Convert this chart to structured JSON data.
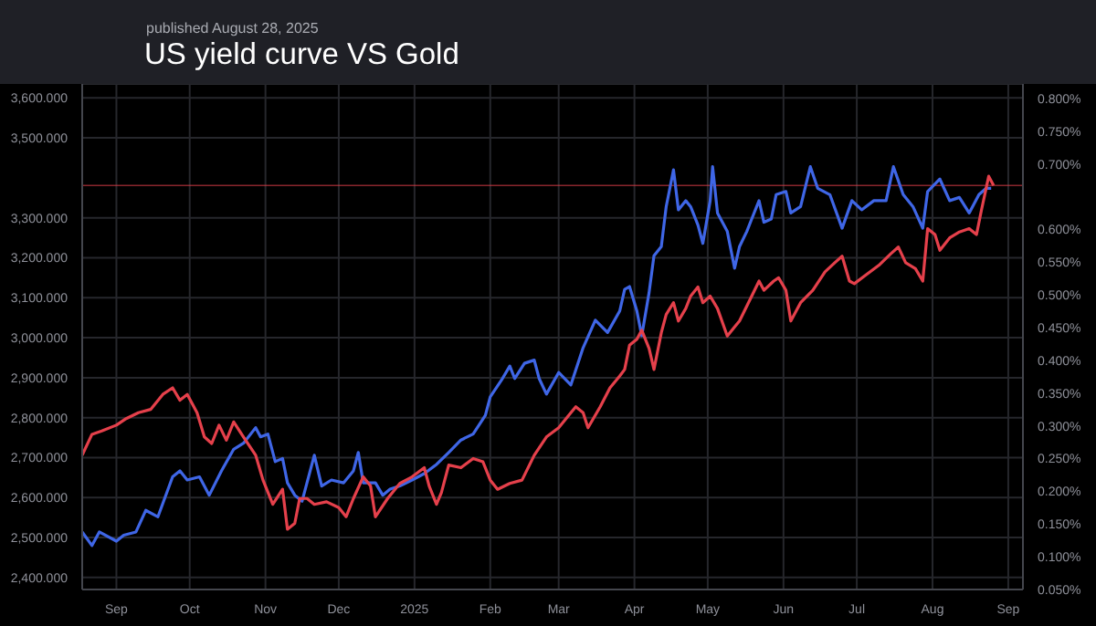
{
  "chart_data": {
    "type": "line",
    "title": "US yield curve VS Gold",
    "subtitle": "published August 28, 2025",
    "xlim": [
      "2024-08-18",
      "2025-09-07"
    ],
    "xticks": [
      {
        "value": "2024-09-01",
        "label": "Sep"
      },
      {
        "value": "2024-10-01",
        "label": "Oct"
      },
      {
        "value": "2024-11-01",
        "label": "Nov"
      },
      {
        "value": "2024-12-01",
        "label": "Dec"
      },
      {
        "value": "2025-01-01",
        "label": "2025"
      },
      {
        "value": "2025-02-01",
        "label": "Feb"
      },
      {
        "value": "2025-03-01",
        "label": "Mar"
      },
      {
        "value": "2025-04-01",
        "label": "Apr"
      },
      {
        "value": "2025-05-01",
        "label": "May"
      },
      {
        "value": "2025-06-01",
        "label": "Jun"
      },
      {
        "value": "2025-07-01",
        "label": "Jul"
      },
      {
        "value": "2025-08-01",
        "label": "Aug"
      },
      {
        "value": "2025-09-01",
        "label": "Sep"
      }
    ],
    "ylim": [
      2370,
      3635
    ],
    "yticks": [
      {
        "value": 2400,
        "label": "2,400.000"
      },
      {
        "value": 2500,
        "label": "2,500.000"
      },
      {
        "value": 2600,
        "label": "2,600.000"
      },
      {
        "value": 2700,
        "label": "2,700.000"
      },
      {
        "value": 2800,
        "label": "2,800.000"
      },
      {
        "value": 2900,
        "label": "2,900.000"
      },
      {
        "value": 3000,
        "label": "3,000.000"
      },
      {
        "value": 3100,
        "label": "3,100.000"
      },
      {
        "value": 3200,
        "label": "3,200.000"
      },
      {
        "value": 3300,
        "label": "3,300.000"
      },
      {
        "value": 3500,
        "label": "3,500.000"
      },
      {
        "value": 3600,
        "label": "3,600.000"
      }
    ],
    "y2lim": [
      0.05,
      0.822
    ],
    "y2ticks": [
      {
        "value": 0.05,
        "label": "0.050%"
      },
      {
        "value": 0.1,
        "label": "0.100%"
      },
      {
        "value": 0.15,
        "label": "0.150%"
      },
      {
        "value": 0.2,
        "label": "0.200%"
      },
      {
        "value": 0.25,
        "label": "0.250%"
      },
      {
        "value": 0.3,
        "label": "0.300%"
      },
      {
        "value": 0.35,
        "label": "0.350%"
      },
      {
        "value": 0.4,
        "label": "0.400%"
      },
      {
        "value": 0.45,
        "label": "0.450%"
      },
      {
        "value": 0.5,
        "label": "0.500%"
      },
      {
        "value": 0.55,
        "label": "0.550%"
      },
      {
        "value": 0.6,
        "label": "0.600%"
      },
      {
        "value": 0.7,
        "label": "0.700%"
      },
      {
        "value": 0.75,
        "label": "0.750%"
      },
      {
        "value": 0.8,
        "label": "0.800%"
      }
    ],
    "grid": true,
    "marker": "none",
    "line_style": "solid",
    "ref_lines": [
      {
        "axis": "y2",
        "value": 0.667,
        "color": "#e5404b",
        "line_style": "solid"
      }
    ],
    "series": [
      {
        "color": "#3f66e6",
        "x": [
          "2024-08-18",
          "2024-08-22",
          "2024-08-25",
          "2024-09-01",
          "2024-09-04",
          "2024-09-09",
          "2024-09-13",
          "2024-09-18",
          "2024-09-24",
          "2024-09-27",
          "2024-09-30",
          "2024-10-05",
          "2024-10-09",
          "2024-10-14",
          "2024-10-19",
          "2024-10-23",
          "2024-10-28",
          "2024-10-30",
          "2024-11-02",
          "2024-11-05",
          "2024-11-08",
          "2024-11-10",
          "2024-11-13",
          "2024-11-16",
          "2024-11-21",
          "2024-11-24",
          "2024-11-28",
          "2024-12-03",
          "2024-12-07",
          "2024-12-09",
          "2024-12-11",
          "2024-12-16",
          "2024-12-19",
          "2024-12-22",
          "2024-12-26",
          "2024-12-31",
          "2025-01-05",
          "2025-01-10",
          "2025-01-15",
          "2025-01-20",
          "2025-01-25",
          "2025-01-30",
          "2025-02-01",
          "2025-02-06",
          "2025-02-09",
          "2025-02-11",
          "2025-02-15",
          "2025-02-19",
          "2025-02-21",
          "2025-02-24",
          "2025-03-01",
          "2025-03-06",
          "2025-03-11",
          "2025-03-16",
          "2025-03-21",
          "2025-03-26",
          "2025-03-28",
          "2025-03-30",
          "2025-04-02",
          "2025-04-04",
          "2025-04-07",
          "2025-04-09",
          "2025-04-12",
          "2025-04-14",
          "2025-04-17",
          "2025-04-19",
          "2025-04-22",
          "2025-04-24",
          "2025-04-27",
          "2025-04-29",
          "2025-05-02",
          "2025-05-03",
          "2025-05-05",
          "2025-05-09",
          "2025-05-12",
          "2025-05-14",
          "2025-05-17",
          "2025-05-19",
          "2025-05-22",
          "2025-05-24",
          "2025-05-27",
          "2025-05-29",
          "2025-06-02",
          "2025-06-04",
          "2025-06-08",
          "2025-06-12",
          "2025-06-15",
          "2025-06-20",
          "2025-06-25",
          "2025-06-29",
          "2025-07-03",
          "2025-07-08",
          "2025-07-13",
          "2025-07-16",
          "2025-07-20",
          "2025-07-24",
          "2025-07-28",
          "2025-07-30",
          "2025-08-04",
          "2025-08-08",
          "2025-08-12",
          "2025-08-16",
          "2025-08-20",
          "2025-08-23",
          "2025-08-25"
        ],
        "values": [
          2514,
          2480,
          2514,
          2491,
          2506,
          2514,
          2568,
          2552,
          2652,
          2667,
          2644,
          2652,
          2606,
          2667,
          2721,
          2736,
          2775,
          2752,
          2759,
          2690,
          2698,
          2637,
          2606,
          2591,
          2706,
          2629,
          2644,
          2637,
          2667,
          2713,
          2637,
          2637,
          2606,
          2621,
          2629,
          2644,
          2660,
          2683,
          2713,
          2744,
          2759,
          2806,
          2852,
          2898,
          2929,
          2898,
          2936,
          2944,
          2898,
          2859,
          2913,
          2882,
          2975,
          3044,
          3013,
          3067,
          3121,
          3128,
          3067,
          3005,
          3113,
          3205,
          3228,
          3328,
          3420,
          3320,
          3343,
          3328,
          3282,
          3236,
          3343,
          3428,
          3312,
          3266,
          3174,
          3228,
          3266,
          3297,
          3343,
          3289,
          3297,
          3358,
          3366,
          3312,
          3328,
          3428,
          3374,
          3358,
          3274,
          3343,
          3320,
          3343,
          3343,
          3428,
          3358,
          3328,
          3274,
          3366,
          3397,
          3343,
          3351,
          3312,
          3358,
          3374,
          3374
        ]
      },
      {
        "color": "#e5404b",
        "axis": "y2",
        "x": [
          "2024-08-18",
          "2024-08-22",
          "2024-08-26",
          "2024-09-01",
          "2024-09-05",
          "2024-09-10",
          "2024-09-15",
          "2024-09-20",
          "2024-09-24",
          "2024-09-27",
          "2024-09-30",
          "2024-10-04",
          "2024-10-07",
          "2024-10-10",
          "2024-10-13",
          "2024-10-16",
          "2024-10-19",
          "2024-10-23",
          "2024-10-28",
          "2024-10-31",
          "2024-11-04",
          "2024-11-08",
          "2024-11-10",
          "2024-11-13",
          "2024-11-15",
          "2024-11-18",
          "2024-11-21",
          "2024-11-26",
          "2024-12-01",
          "2024-12-04",
          "2024-12-07",
          "2024-12-11",
          "2024-12-14",
          "2024-12-16",
          "2024-12-21",
          "2024-12-26",
          "2024-12-31",
          "2025-01-05",
          "2025-01-07",
          "2025-01-10",
          "2025-01-12",
          "2025-01-15",
          "2025-01-20",
          "2025-01-25",
          "2025-01-29",
          "2025-02-01",
          "2025-02-04",
          "2025-02-09",
          "2025-02-14",
          "2025-02-19",
          "2025-02-24",
          "2025-03-01",
          "2025-03-06",
          "2025-03-08",
          "2025-03-11",
          "2025-03-13",
          "2025-03-18",
          "2025-03-22",
          "2025-03-26",
          "2025-03-28",
          "2025-03-30",
          "2025-04-02",
          "2025-04-04",
          "2025-04-07",
          "2025-04-09",
          "2025-04-12",
          "2025-04-14",
          "2025-04-17",
          "2025-04-19",
          "2025-04-22",
          "2025-04-24",
          "2025-04-27",
          "2025-04-29",
          "2025-05-02",
          "2025-05-05",
          "2025-05-09",
          "2025-05-12",
          "2025-05-14",
          "2025-05-19",
          "2025-05-22",
          "2025-05-24",
          "2025-05-28",
          "2025-05-30",
          "2025-06-02",
          "2025-06-04",
          "2025-06-08",
          "2025-06-13",
          "2025-06-18",
          "2025-06-22",
          "2025-06-25",
          "2025-06-28",
          "2025-06-30",
          "2025-07-05",
          "2025-07-10",
          "2025-07-15",
          "2025-07-18",
          "2025-07-21",
          "2025-07-25",
          "2025-07-28",
          "2025-07-30",
          "2025-08-02",
          "2025-08-04",
          "2025-08-08",
          "2025-08-12",
          "2025-08-16",
          "2025-08-19",
          "2025-08-21",
          "2025-08-24",
          "2025-08-26"
        ],
        "values": [
          0.255,
          0.287,
          0.292,
          0.301,
          0.311,
          0.32,
          0.325,
          0.348,
          0.358,
          0.339,
          0.348,
          0.32,
          0.283,
          0.273,
          0.301,
          0.278,
          0.306,
          0.283,
          0.255,
          0.217,
          0.18,
          0.203,
          0.142,
          0.151,
          0.189,
          0.189,
          0.18,
          0.184,
          0.175,
          0.161,
          0.189,
          0.222,
          0.208,
          0.161,
          0.189,
          0.212,
          0.222,
          0.236,
          0.208,
          0.18,
          0.198,
          0.24,
          0.236,
          0.25,
          0.245,
          0.217,
          0.203,
          0.212,
          0.217,
          0.255,
          0.283,
          0.297,
          0.32,
          0.329,
          0.32,
          0.297,
          0.329,
          0.358,
          0.376,
          0.386,
          0.423,
          0.432,
          0.446,
          0.418,
          0.386,
          0.442,
          0.47,
          0.488,
          0.46,
          0.479,
          0.498,
          0.512,
          0.488,
          0.498,
          0.479,
          0.437,
          0.451,
          0.46,
          0.498,
          0.521,
          0.507,
          0.521,
          0.526,
          0.507,
          0.46,
          0.488,
          0.507,
          0.535,
          0.549,
          0.559,
          0.521,
          0.517,
          0.531,
          0.545,
          0.563,
          0.573,
          0.549,
          0.54,
          0.521,
          0.601,
          0.592,
          0.568,
          0.587,
          0.596,
          0.601,
          0.592,
          0.629,
          0.681,
          0.667
        ]
      }
    ]
  }
}
